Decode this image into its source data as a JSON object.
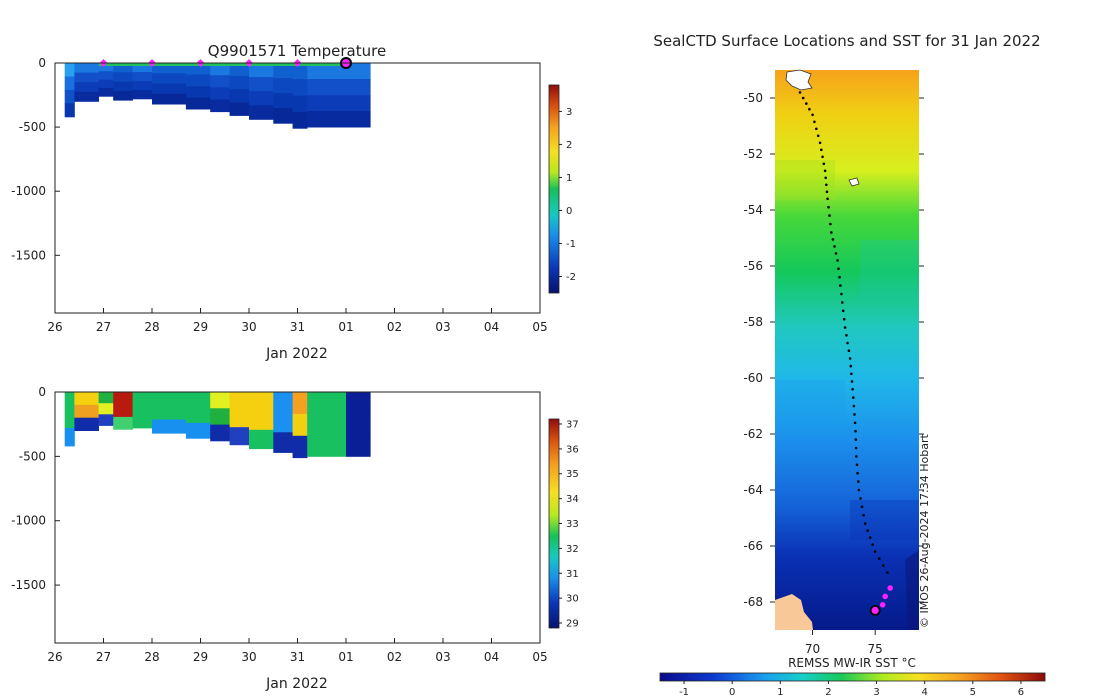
{
  "temp_chart": {
    "title": "Q9901571  Temperature",
    "xlabel": "Jan 2022",
    "x_ticks": [
      "26",
      "27",
      "28",
      "29",
      "30",
      "31",
      "01",
      "02",
      "03",
      "04",
      "05"
    ],
    "y_ticks": [
      "0",
      "-500",
      "-1000",
      "-1500"
    ],
    "colorbar_ticks": [
      "3",
      "2",
      "1",
      "0",
      "-1",
      "-2"
    ]
  },
  "sal_chart": {
    "title": "",
    "xlabel": "Jan 2022",
    "x_ticks": [
      "26",
      "27",
      "28",
      "29",
      "30",
      "31",
      "01",
      "02",
      "03",
      "04",
      "05"
    ],
    "y_ticks": [
      "0",
      "-500",
      "-1000",
      "-1500"
    ],
    "colorbar_ticks": [
      "37",
      "36",
      "35",
      "34",
      "33",
      "32",
      "31",
      "30",
      "29"
    ]
  },
  "map_chart": {
    "title": "SealCTD Surface Locations and SST for 31 Jan 2022",
    "x_ticks": [
      "70",
      "75"
    ],
    "y_ticks": [
      "-50",
      "-52",
      "-54",
      "-56",
      "-58",
      "-60",
      "-62",
      "-64",
      "-66",
      "-68"
    ],
    "colorbar_label": "REMSS MW-IR SST °C",
    "colorbar_ticks": [
      "-1",
      "0",
      "1",
      "2",
      "3",
      "4",
      "5",
      "6"
    ],
    "credit": "© IMOS 26-Aug-2024 17:34 Hobart"
  },
  "chart_data": [
    {
      "type": "heatmap",
      "title": "Q9901571  Temperature",
      "xlabel": "Jan 2022",
      "ylabel": "",
      "x_range": [
        26.0,
        36.0
      ],
      "ylim": [
        -1950,
        0
      ],
      "colorbar_range": [
        -2.5,
        3.8
      ],
      "profiles": [
        {
          "t": 26.2,
          "depth": 420,
          "colors": [
            "#2aa0f0",
            "#1a70e0",
            "#1050c8",
            "#0a36b0"
          ]
        },
        {
          "t": 26.4,
          "depth": 300,
          "colors": [
            "#1a78e0",
            "#1150c8",
            "#0c3cb8",
            "#082ca0"
          ]
        },
        {
          "t": 26.9,
          "depth": 260,
          "colors": [
            "#1a78e0",
            "#1150c8",
            "#0c3cb8",
            "#082ca0"
          ]
        },
        {
          "t": 27.2,
          "depth": 290,
          "colors": [
            "#1060d0",
            "#0c48c0",
            "#0838b0",
            "#062898"
          ]
        },
        {
          "t": 27.6,
          "depth": 280,
          "colors": [
            "#1a78e0",
            "#1150c8",
            "#0c3cb8",
            "#082ca0"
          ]
        },
        {
          "t": 28.0,
          "depth": 320,
          "colors": [
            "#1060d0",
            "#0c48c0",
            "#0838b0",
            "#062898"
          ]
        },
        {
          "t": 28.7,
          "depth": 360,
          "colors": [
            "#1060d0",
            "#0c48c0",
            "#0838b0",
            "#062898"
          ]
        },
        {
          "t": 29.2,
          "depth": 380,
          "colors": [
            "#1a78e0",
            "#1150c8",
            "#0c3cb8",
            "#082ca0"
          ]
        },
        {
          "t": 29.6,
          "depth": 410,
          "colors": [
            "#1060d0",
            "#0c48c0",
            "#0838b0",
            "#062898"
          ]
        },
        {
          "t": 30.0,
          "depth": 440,
          "colors": [
            "#1a78e0",
            "#1150c8",
            "#0c3cb8",
            "#082ca0"
          ]
        },
        {
          "t": 30.5,
          "depth": 470,
          "colors": [
            "#1060d0",
            "#0c48c0",
            "#0838b0",
            "#062898"
          ]
        },
        {
          "t": 30.9,
          "depth": 510,
          "colors": [
            "#1060d0",
            "#0c48c0",
            "#0838b0",
            "#062898"
          ]
        },
        {
          "t": 31.2,
          "depth": 500,
          "colors": [
            "#1a78e0",
            "#1150c8",
            "#0c3cb8",
            "#082ca0"
          ]
        },
        {
          "t": 32.0,
          "depth": 500,
          "colors": [
            "#1a78e0",
            "#1150c8",
            "#0c3cb8",
            "#082ca0"
          ]
        }
      ],
      "surface_points": [
        27.0,
        28.0,
        29.0,
        30.0,
        31.0
      ],
      "current_point": 32.0
    },
    {
      "type": "heatmap",
      "title": "",
      "xlabel": "Jan 2022",
      "ylabel": "",
      "x_range": [
        26.0,
        36.0
      ],
      "ylim": [
        -1950,
        0
      ],
      "colorbar_range": [
        28.8,
        37.2
      ],
      "profiles": [
        {
          "t": 26.2,
          "depth": 420,
          "colors": [
            "#18c060",
            "#18c060",
            "#1890f0"
          ]
        },
        {
          "t": 26.4,
          "depth": 300,
          "colors": [
            "#f5d010",
            "#f0a020",
            "#102ca8"
          ]
        },
        {
          "t": 26.9,
          "depth": 260,
          "colors": [
            "#20b040",
            "#e0f020",
            "#2040c0"
          ]
        },
        {
          "t": 27.2,
          "depth": 290,
          "colors": [
            "#b81a10",
            "#b81a10",
            "#40d070"
          ]
        },
        {
          "t": 27.6,
          "depth": 280,
          "colors": [
            "#18c060",
            "#18c060",
            "#18c060"
          ]
        },
        {
          "t": 28.0,
          "depth": 320,
          "colors": [
            "#18c060",
            "#18c060",
            "#1890f0"
          ]
        },
        {
          "t": 28.7,
          "depth": 360,
          "colors": [
            "#18c060",
            "#18c060",
            "#1890f0"
          ]
        },
        {
          "t": 29.2,
          "depth": 380,
          "colors": [
            "#e0f020",
            "#20b040",
            "#102ca8"
          ]
        },
        {
          "t": 29.6,
          "depth": 410,
          "colors": [
            "#f5d010",
            "#f5d010",
            "#2040c0"
          ]
        },
        {
          "t": 30.0,
          "depth": 440,
          "colors": [
            "#f5d010",
            "#f5d010",
            "#18c060"
          ]
        },
        {
          "t": 30.5,
          "depth": 470,
          "colors": [
            "#1a90f0",
            "#1a90f0",
            "#102ca8"
          ]
        },
        {
          "t": 30.9,
          "depth": 510,
          "colors": [
            "#f5a020",
            "#f0d010",
            "#102ca8"
          ]
        },
        {
          "t": 31.2,
          "depth": 500,
          "colors": [
            "#18c060",
            "#18c060",
            "#18c060"
          ]
        },
        {
          "t": 32.0,
          "depth": 500,
          "colors": [
            "#0a1e96",
            "#0a1e96",
            "#0a1e96"
          ]
        }
      ]
    },
    {
      "type": "heatmap",
      "title": "SealCTD Surface Locations and SST for 31 Jan 2022",
      "xlabel": "",
      "ylabel": "",
      "xlim": [
        67.0,
        78.5
      ],
      "ylim": [
        -69.0,
        -49.0
      ],
      "colorbar_label": "REMSS MW-IR SST °C",
      "colorbar_range": [
        -1.5,
        6.5
      ],
      "track": [
        [
          69.0,
          -49.8
        ],
        [
          70.0,
          -50.6
        ],
        [
          70.6,
          -51.6
        ],
        [
          71.0,
          -52.6
        ],
        [
          71.2,
          -53.6
        ],
        [
          71.5,
          -54.8
        ],
        [
          72.0,
          -55.8
        ],
        [
          72.3,
          -57.0
        ],
        [
          72.6,
          -58.2
        ],
        [
          73.0,
          -59.3
        ],
        [
          73.2,
          -60.4
        ],
        [
          73.4,
          -61.6
        ],
        [
          73.5,
          -62.8
        ],
        [
          73.7,
          -64.0
        ],
        [
          74.2,
          -65.2
        ],
        [
          75.0,
          -66.2
        ],
        [
          76.3,
          -67.2
        ]
      ],
      "recent_points": [
        [
          76.2,
          -67.5
        ],
        [
          75.8,
          -67.8
        ],
        [
          75.6,
          -68.1
        ]
      ],
      "current_position": [
        75.0,
        -68.3
      ],
      "sst_bands": [
        {
          "lat_top": -49.0,
          "lat_bottom": -51.0,
          "sst": 4.5
        },
        {
          "lat_top": -51.0,
          "lat_bottom": -53.0,
          "sst": 3.5
        },
        {
          "lat_top": -53.0,
          "lat_bottom": -56.0,
          "sst": 2.4
        },
        {
          "lat_top": -56.0,
          "lat_bottom": -59.0,
          "sst": 1.4
        },
        {
          "lat_top": -59.0,
          "lat_bottom": -62.0,
          "sst": 1.0
        },
        {
          "lat_top": -62.0,
          "lat_bottom": -65.5,
          "sst": 0.6
        },
        {
          "lat_top": -65.5,
          "lat_bottom": -69.0,
          "sst": -0.6
        }
      ]
    }
  ]
}
